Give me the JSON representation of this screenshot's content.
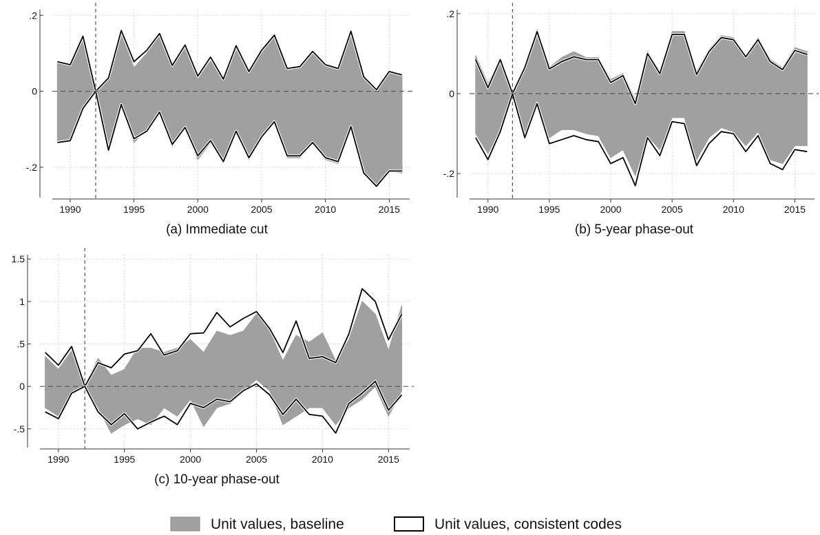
{
  "chart_data": [
    {
      "type": "area",
      "caption": "(a) Immediate cut",
      "x": [
        1989,
        1990,
        1991,
        1992,
        1993,
        1994,
        1995,
        1996,
        1997,
        1998,
        1999,
        2000,
        2001,
        2002,
        2003,
        2004,
        2005,
        2006,
        2007,
        2008,
        2009,
        2010,
        2011,
        2012,
        2013,
        2014,
        2015,
        2016
      ],
      "xticks": [
        1990,
        1995,
        2000,
        2005,
        2010,
        2015
      ],
      "ytick_values": [
        -0.2,
        0,
        0.2
      ],
      "ytick_labels": [
        "-.2",
        "0",
        ".2"
      ],
      "ylim": [
        -0.28,
        0.215
      ],
      "xlim": [
        1988.6,
        2016.6
      ],
      "event_year": 1992,
      "series": [
        {
          "name": "Unit values, baseline",
          "upper": [
            0.075,
            0.068,
            0.14,
            0,
            0.03,
            0.15,
            0.062,
            0.1,
            0.145,
            0.06,
            0.115,
            0.032,
            0.08,
            0.028,
            0.115,
            0.045,
            0.1,
            0.142,
            0.055,
            0.06,
            0.1,
            0.065,
            0.055,
            0.155,
            0.035,
            0.002,
            0.048,
            0.04
          ],
          "lower": [
            -0.13,
            -0.125,
            -0.045,
            0,
            -0.15,
            -0.04,
            -0.135,
            -0.1,
            -0.055,
            -0.145,
            -0.095,
            -0.18,
            -0.135,
            -0.18,
            -0.11,
            -0.18,
            -0.115,
            -0.08,
            -0.175,
            -0.175,
            -0.135,
            -0.18,
            -0.19,
            -0.095,
            -0.215,
            -0.245,
            -0.21,
            -0.215
          ]
        },
        {
          "name": "Unit values, consistent codes",
          "upper": [
            0.078,
            0.07,
            0.145,
            0,
            0.035,
            0.16,
            0.078,
            0.108,
            0.152,
            0.068,
            0.122,
            0.04,
            0.09,
            0.032,
            0.12,
            0.052,
            0.108,
            0.148,
            0.06,
            0.065,
            0.105,
            0.07,
            0.06,
            0.158,
            0.038,
            0.004,
            0.052,
            0.043
          ],
          "lower": [
            -0.135,
            -0.13,
            -0.045,
            0,
            -0.155,
            -0.035,
            -0.125,
            -0.105,
            -0.055,
            -0.14,
            -0.095,
            -0.17,
            -0.13,
            -0.185,
            -0.105,
            -0.175,
            -0.12,
            -0.08,
            -0.17,
            -0.17,
            -0.135,
            -0.175,
            -0.185,
            -0.093,
            -0.215,
            -0.25,
            -0.21,
            -0.21
          ]
        }
      ]
    },
    {
      "type": "area",
      "caption": "(b) 5-year phase-out",
      "x": [
        1989,
        1990,
        1991,
        1992,
        1993,
        1994,
        1995,
        1996,
        1997,
        1998,
        1999,
        2000,
        2001,
        2002,
        2003,
        2004,
        2005,
        2006,
        2007,
        2008,
        2009,
        2010,
        2011,
        2012,
        2013,
        2014,
        2015,
        2016
      ],
      "xticks": [
        1990,
        1995,
        2000,
        2005,
        2010,
        2015
      ],
      "ytick_values": [
        -0.2,
        0,
        0.2
      ],
      "ytick_labels": [
        "-.2",
        "0",
        ".2"
      ],
      "ylim": [
        -0.26,
        0.21
      ],
      "xlim": [
        1988.5,
        2016.6
      ],
      "event_year": 1992,
      "series": [
        {
          "name": "Unit values, baseline",
          "upper": [
            0.095,
            0.025,
            0.085,
            0,
            0.07,
            0.16,
            0.065,
            0.09,
            0.105,
            0.09,
            0.09,
            0.035,
            0.05,
            -0.015,
            0.105,
            0.055,
            0.155,
            0.155,
            0.055,
            0.11,
            0.145,
            0.14,
            0.095,
            0.14,
            0.085,
            0.065,
            0.115,
            0.105
          ],
          "lower": [
            -0.1,
            -0.15,
            -0.09,
            0,
            -0.1,
            -0.015,
            -0.11,
            -0.09,
            -0.09,
            -0.1,
            -0.105,
            -0.16,
            -0.14,
            -0.205,
            -0.105,
            -0.14,
            -0.06,
            -0.06,
            -0.165,
            -0.11,
            -0.085,
            -0.095,
            -0.13,
            -0.095,
            -0.165,
            -0.175,
            -0.13,
            -0.13
          ]
        },
        {
          "name": "Unit values, consistent codes",
          "upper": [
            0.085,
            0.015,
            0.085,
            0,
            0.065,
            0.155,
            0.062,
            0.08,
            0.092,
            0.085,
            0.085,
            0.028,
            0.045,
            -0.025,
            0.1,
            0.05,
            0.148,
            0.148,
            0.048,
            0.105,
            0.14,
            0.135,
            0.092,
            0.135,
            0.08,
            0.06,
            0.108,
            0.098
          ],
          "lower": [
            -0.11,
            -0.165,
            -0.095,
            0,
            -0.11,
            -0.025,
            -0.125,
            -0.115,
            -0.105,
            -0.115,
            -0.12,
            -0.175,
            -0.16,
            -0.23,
            -0.11,
            -0.155,
            -0.07,
            -0.075,
            -0.18,
            -0.125,
            -0.095,
            -0.1,
            -0.145,
            -0.105,
            -0.175,
            -0.19,
            -0.14,
            -0.145
          ]
        }
      ]
    },
    {
      "type": "area",
      "caption": "(c) 10-year phase-out",
      "x": [
        1989,
        1990,
        1991,
        1992,
        1993,
        1994,
        1995,
        1996,
        1997,
        1998,
        1999,
        2000,
        2001,
        2002,
        2003,
        2004,
        2005,
        2006,
        2007,
        2008,
        2009,
        2010,
        2011,
        2012,
        2013,
        2014,
        2015,
        2016
      ],
      "xticks": [
        1990,
        1995,
        2000,
        2005,
        2010,
        2015
      ],
      "ytick_values": [
        -0.5,
        0,
        0.5,
        1,
        1.5
      ],
      "ytick_labels": [
        "-.5",
        "0",
        ".5",
        "1",
        "1.5"
      ],
      "ylim": [
        -0.72,
        1.55
      ],
      "xlim": [
        1988.6,
        2016.6
      ],
      "event_year": 1992,
      "series": [
        {
          "name": "Unit values, baseline",
          "upper": [
            0.35,
            0.2,
            0.42,
            0,
            0.33,
            0.13,
            0.2,
            0.45,
            0.45,
            0.4,
            0.45,
            0.55,
            0.4,
            0.65,
            0.6,
            0.65,
            0.85,
            0.65,
            0.3,
            0.6,
            0.52,
            0.63,
            0.3,
            0.55,
            1.0,
            0.85,
            0.42,
            0.95
          ],
          "lower": [
            -0.25,
            -0.35,
            -0.08,
            0,
            -0.25,
            -0.55,
            -0.45,
            -0.38,
            -0.45,
            -0.25,
            -0.35,
            -0.15,
            -0.47,
            -0.25,
            -0.2,
            -0.05,
            0.08,
            -0.05,
            -0.45,
            -0.35,
            -0.25,
            -0.25,
            -0.45,
            -0.25,
            -0.15,
            0.0,
            -0.35,
            -0.05
          ]
        },
        {
          "name": "Unit values, consistent codes",
          "upper": [
            0.4,
            0.25,
            0.47,
            0,
            0.28,
            0.22,
            0.38,
            0.42,
            0.62,
            0.37,
            0.42,
            0.62,
            0.63,
            0.87,
            0.7,
            0.8,
            0.88,
            0.68,
            0.4,
            0.77,
            0.33,
            0.35,
            0.28,
            0.62,
            1.15,
            1.0,
            0.55,
            0.85
          ],
          "lower": [
            -0.3,
            -0.38,
            -0.08,
            0,
            -0.3,
            -0.45,
            -0.32,
            -0.5,
            -0.42,
            -0.35,
            -0.45,
            -0.2,
            -0.25,
            -0.15,
            -0.18,
            -0.05,
            0.03,
            -0.1,
            -0.33,
            -0.15,
            -0.33,
            -0.35,
            -0.55,
            -0.2,
            -0.08,
            0.06,
            -0.28,
            -0.1
          ]
        }
      ]
    }
  ],
  "legend": {
    "items": [
      {
        "label": "Unit values, baseline",
        "fill": "#a0a0a0",
        "stroke": "#a0a0a0"
      },
      {
        "label": "Unit values, consistent codes",
        "fill": "#ffffff",
        "stroke": "#000000"
      }
    ]
  },
  "colors": {
    "baseline_fill": "#a0a0a0",
    "consistent_line": "#000000",
    "gridline": "#c8c8c8",
    "zero_line": "#555555",
    "event_line": "#555555"
  }
}
